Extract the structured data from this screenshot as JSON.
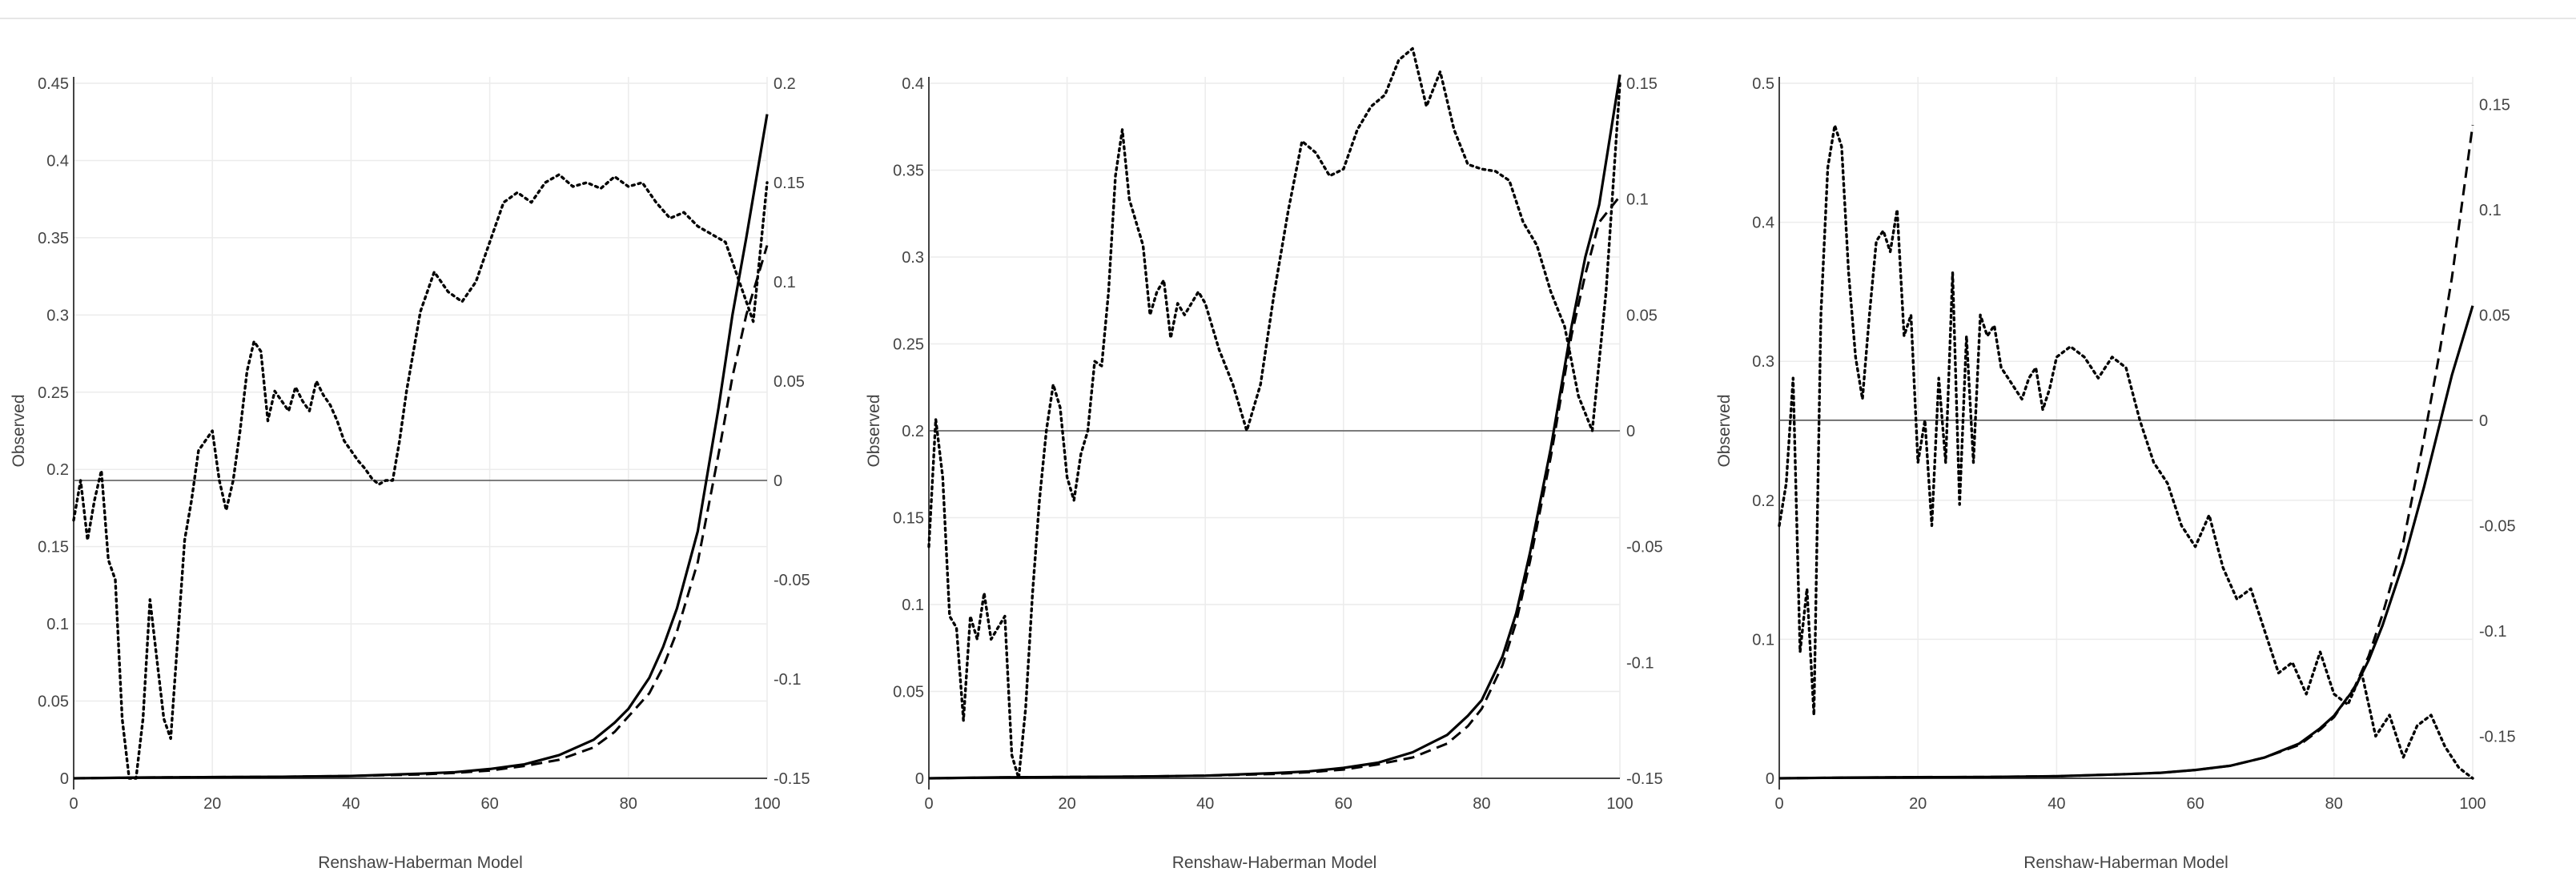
{
  "chart_data": [
    {
      "type": "line",
      "xlabel": "Renshaw-Haberman Model",
      "ylabel": "Observed",
      "x_ticks": [
        0,
        20,
        40,
        60,
        80,
        100
      ],
      "y_ticks": [
        0,
        0.05,
        0.1,
        0.15,
        0.2,
        0.25,
        0.3,
        0.35,
        0.4,
        0.45
      ],
      "y2_ticks": [
        -0.15,
        -0.1,
        -0.05,
        0,
        0.05,
        0.1,
        0.15,
        0.2
      ],
      "xlim": [
        0,
        100
      ],
      "ylim": [
        0,
        0.45
      ],
      "y2lim": [
        -0.15,
        0.2
      ],
      "grid": true,
      "series": [
        {
          "style": "solid",
          "axis": "y",
          "x": [
            0,
            10,
            20,
            30,
            40,
            50,
            55,
            60,
            65,
            70,
            75,
            78,
            80,
            83,
            85,
            87,
            90,
            93,
            95,
            97,
            100
          ],
          "y": [
            0,
            0.0005,
            0.0008,
            0.001,
            0.0015,
            0.003,
            0.004,
            0.006,
            0.009,
            0.015,
            0.025,
            0.036,
            0.045,
            0.065,
            0.085,
            0.11,
            0.16,
            0.24,
            0.3,
            0.35,
            0.43
          ]
        },
        {
          "style": "dashed",
          "axis": "y",
          "x": [
            0,
            10,
            20,
            30,
            40,
            50,
            55,
            60,
            65,
            70,
            75,
            78,
            80,
            83,
            85,
            87,
            90,
            93,
            95,
            97,
            100
          ],
          "y": [
            0,
            0.0005,
            0.0008,
            0.001,
            0.0015,
            0.0025,
            0.0035,
            0.005,
            0.008,
            0.012,
            0.02,
            0.03,
            0.04,
            0.055,
            0.072,
            0.095,
            0.14,
            0.21,
            0.26,
            0.3,
            0.345
          ]
        },
        {
          "style": "dotted",
          "axis": "y2",
          "x": [
            0,
            1,
            2,
            3,
            4,
            5,
            6,
            7,
            8,
            9,
            10,
            11,
            12,
            13,
            14,
            15,
            16,
            17,
            18,
            19,
            20,
            21,
            22,
            23,
            24,
            25,
            26,
            27,
            28,
            29,
            30,
            31,
            32,
            33,
            34,
            35,
            36,
            37,
            38,
            39,
            40,
            41,
            42,
            43,
            44,
            45,
            46,
            47,
            48,
            50,
            52,
            54,
            56,
            58,
            60,
            62,
            64,
            66,
            68,
            70,
            72,
            74,
            76,
            78,
            80,
            82,
            84,
            86,
            88,
            90,
            92,
            94,
            96,
            98,
            100
          ],
          "y": [
            -0.02,
            0.0,
            -0.03,
            -0.01,
            0.005,
            -0.04,
            -0.05,
            -0.12,
            -0.15,
            -0.15,
            -0.12,
            -0.06,
            -0.09,
            -0.12,
            -0.13,
            -0.08,
            -0.03,
            -0.01,
            0.015,
            0.02,
            0.025,
            0.0,
            -0.015,
            0.0,
            0.025,
            0.055,
            0.07,
            0.065,
            0.03,
            0.045,
            0.04,
            0.035,
            0.047,
            0.04,
            0.035,
            0.05,
            0.043,
            0.038,
            0.03,
            0.02,
            0.015,
            0.01,
            0.006,
            0.001,
            -0.002,
            0.0,
            0.0,
            0.02,
            0.045,
            0.085,
            0.105,
            0.095,
            0.09,
            0.1,
            0.12,
            0.14,
            0.145,
            0.14,
            0.15,
            0.154,
            0.148,
            0.15,
            0.147,
            0.153,
            0.148,
            0.15,
            0.14,
            0.132,
            0.135,
            0.128,
            0.124,
            0.12,
            0.1,
            0.08,
            0.15
          ]
        }
      ]
    },
    {
      "type": "line",
      "xlabel": "Renshaw-Haberman Model",
      "ylabel": "Observed",
      "x_ticks": [
        0,
        20,
        40,
        60,
        80,
        100
      ],
      "y_ticks": [
        0,
        0.05,
        0.1,
        0.15,
        0.2,
        0.25,
        0.3,
        0.35,
        0.4
      ],
      "y2_ticks": [
        -0.15,
        -0.1,
        -0.05,
        0,
        0.05,
        0.1,
        0.15
      ],
      "xlim": [
        0,
        100
      ],
      "ylim": [
        0,
        0.4
      ],
      "y2lim": [
        -0.15,
        0.15
      ],
      "grid": true,
      "series": [
        {
          "style": "solid",
          "axis": "y",
          "x": [
            0,
            10,
            20,
            30,
            40,
            50,
            55,
            60,
            65,
            70,
            75,
            78,
            80,
            83,
            85,
            87,
            90,
            93,
            95,
            97,
            100
          ],
          "y": [
            0,
            0.0005,
            0.0008,
            0.001,
            0.0015,
            0.003,
            0.004,
            0.006,
            0.009,
            0.015,
            0.025,
            0.036,
            0.045,
            0.07,
            0.095,
            0.13,
            0.19,
            0.26,
            0.3,
            0.33,
            0.405
          ]
        },
        {
          "style": "dashed",
          "axis": "y",
          "x": [
            0,
            10,
            20,
            30,
            40,
            50,
            55,
            60,
            65,
            70,
            75,
            78,
            80,
            83,
            85,
            87,
            90,
            93,
            95,
            97,
            100
          ],
          "y": [
            0,
            0.0005,
            0.0008,
            0.001,
            0.0015,
            0.0025,
            0.0035,
            0.005,
            0.008,
            0.012,
            0.02,
            0.03,
            0.04,
            0.065,
            0.09,
            0.125,
            0.185,
            0.255,
            0.29,
            0.32,
            0.335
          ]
        },
        {
          "style": "dotted",
          "axis": "y2",
          "x": [
            0,
            1,
            2,
            3,
            4,
            5,
            6,
            7,
            8,
            9,
            10,
            11,
            12,
            13,
            14,
            15,
            16,
            17,
            18,
            19,
            20,
            21,
            22,
            23,
            24,
            25,
            26,
            27,
            28,
            29,
            30,
            31,
            32,
            33,
            34,
            35,
            36,
            37,
            38,
            39,
            40,
            42,
            44,
            46,
            48,
            50,
            52,
            54,
            56,
            58,
            60,
            62,
            64,
            66,
            68,
            70,
            72,
            74,
            76,
            78,
            80,
            82,
            84,
            86,
            88,
            90,
            92,
            94,
            96,
            98,
            100
          ],
          "y": [
            -0.05,
            0.005,
            -0.02,
            -0.08,
            -0.085,
            -0.125,
            -0.08,
            -0.09,
            -0.07,
            -0.09,
            -0.085,
            -0.08,
            -0.14,
            -0.15,
            -0.12,
            -0.07,
            -0.03,
            0.0,
            0.02,
            0.01,
            -0.02,
            -0.03,
            -0.01,
            0.0,
            0.03,
            0.028,
            0.06,
            0.11,
            0.13,
            0.1,
            0.09,
            0.08,
            0.05,
            0.06,
            0.065,
            0.04,
            0.055,
            0.05,
            0.055,
            0.06,
            0.055,
            0.035,
            0.02,
            0.0,
            0.02,
            0.06,
            0.095,
            0.125,
            0.12,
            0.11,
            0.113,
            0.13,
            0.14,
            0.145,
            0.16,
            0.165,
            0.14,
            0.155,
            0.13,
            0.115,
            0.113,
            0.112,
            0.108,
            0.09,
            0.08,
            0.06,
            0.045,
            0.015,
            0.0,
            0.06,
            0.15
          ]
        }
      ]
    },
    {
      "type": "line",
      "xlabel": "Renshaw-Haberman Model",
      "ylabel": "Observed",
      "x_ticks": [
        0,
        20,
        40,
        60,
        80,
        100
      ],
      "y_ticks": [
        0,
        0.1,
        0.2,
        0.3,
        0.4,
        0.5
      ],
      "y2_ticks": [
        -0.15,
        -0.1,
        -0.05,
        0,
        0.05,
        0.1,
        0.15
      ],
      "xlim": [
        0,
        100
      ],
      "ylim": [
        0,
        0.5
      ],
      "y2lim": [
        -0.17,
        0.16
      ],
      "grid": true,
      "series": [
        {
          "style": "solid",
          "axis": "y",
          "x": [
            0,
            10,
            20,
            30,
            40,
            50,
            55,
            60,
            65,
            70,
            75,
            78,
            80,
            83,
            85,
            87,
            90,
            93,
            95,
            97,
            100
          ],
          "y": [
            0,
            0.0005,
            0.0008,
            0.001,
            0.0015,
            0.003,
            0.004,
            0.006,
            0.009,
            0.015,
            0.025,
            0.036,
            0.045,
            0.065,
            0.085,
            0.11,
            0.155,
            0.21,
            0.25,
            0.29,
            0.34
          ]
        },
        {
          "style": "dashed",
          "axis": "y",
          "x": [
            0,
            10,
            20,
            30,
            40,
            50,
            55,
            60,
            65,
            70,
            75,
            78,
            80,
            83,
            85,
            87,
            90,
            93,
            95,
            97,
            100
          ],
          "y": [
            0,
            0.0005,
            0.0008,
            0.001,
            0.0015,
            0.003,
            0.004,
            0.006,
            0.009,
            0.015,
            0.024,
            0.035,
            0.044,
            0.066,
            0.088,
            0.118,
            0.17,
            0.245,
            0.3,
            0.36,
            0.47
          ]
        },
        {
          "style": "dotted",
          "axis": "y2",
          "x": [
            0,
            1,
            2,
            3,
            4,
            5,
            6,
            7,
            8,
            9,
            10,
            11,
            12,
            13,
            14,
            15,
            16,
            17,
            18,
            19,
            20,
            21,
            22,
            23,
            24,
            25,
            26,
            27,
            28,
            29,
            30,
            31,
            32,
            33,
            34,
            35,
            36,
            37,
            38,
            39,
            40,
            42,
            44,
            46,
            48,
            50,
            52,
            54,
            56,
            58,
            60,
            62,
            64,
            66,
            68,
            70,
            72,
            74,
            76,
            78,
            80,
            82,
            84,
            86,
            88,
            90,
            92,
            94,
            96,
            98,
            100
          ],
          "y": [
            -0.05,
            -0.03,
            0.02,
            -0.11,
            -0.08,
            -0.14,
            0.05,
            0.12,
            0.14,
            0.13,
            0.07,
            0.03,
            0.01,
            0.05,
            0.085,
            0.09,
            0.08,
            0.1,
            0.04,
            0.05,
            -0.02,
            0.0,
            -0.05,
            0.02,
            -0.02,
            0.07,
            -0.04,
            0.04,
            -0.02,
            0.05,
            0.04,
            0.045,
            0.025,
            0.02,
            0.015,
            0.01,
            0.02,
            0.025,
            0.005,
            0.015,
            0.03,
            0.035,
            0.03,
            0.02,
            0.03,
            0.025,
            0.0,
            -0.02,
            -0.03,
            -0.05,
            -0.06,
            -0.045,
            -0.07,
            -0.085,
            -0.08,
            -0.1,
            -0.12,
            -0.115,
            -0.13,
            -0.11,
            -0.13,
            -0.135,
            -0.12,
            -0.15,
            -0.14,
            -0.16,
            -0.145,
            -0.14,
            -0.155,
            -0.165,
            -0.17
          ]
        }
      ]
    }
  ]
}
